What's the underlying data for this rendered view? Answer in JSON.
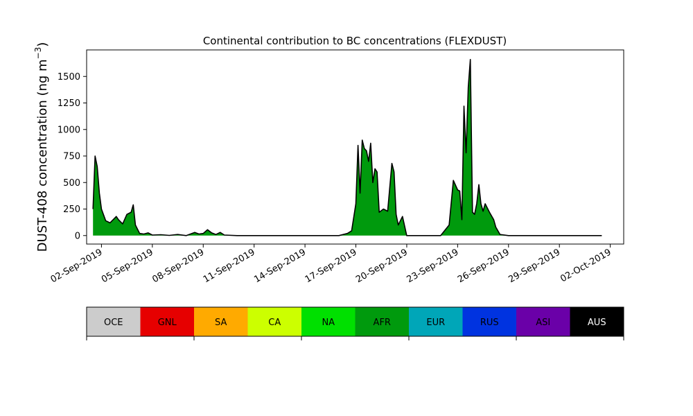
{
  "chart_data": {
    "type": "area",
    "title": "Continental contribution to BC concentrations (FLEXDUST)",
    "xlabel": "",
    "ylabel_main": "DUST-408 concentration (ng m",
    "ylabel_sup": "−3",
    "ylabel_close": ")",
    "xlim": [
      "2019-09-01T03:00",
      "2019-10-02T19:00"
    ],
    "ylim": [
      -80,
      1750
    ],
    "yticks": [
      0,
      250,
      500,
      750,
      1000,
      1250,
      1500
    ],
    "ytick_labels": [
      "0",
      "250",
      "500",
      "750",
      "1000",
      "1250",
      "1500"
    ],
    "xticks": [
      "2019-09-02",
      "2019-09-05",
      "2019-09-08",
      "2019-09-11",
      "2019-09-14",
      "2019-09-17",
      "2019-09-20",
      "2019-09-23",
      "2019-09-26",
      "2019-09-29",
      "2019-10-02"
    ],
    "xtick_labels": [
      "02-Sep-2019",
      "05-Sep-2019",
      "08-Sep-2019",
      "11-Sep-2019",
      "14-Sep-2019",
      "17-Sep-2019",
      "20-Sep-2019",
      "23-Sep-2019",
      "26-Sep-2019",
      "29-Sep-2019",
      "02-Oct-2019"
    ],
    "series": [
      {
        "name": "AFR",
        "color": "#009a0d",
        "points": [
          [
            "2019-09-01T12:00",
            250
          ],
          [
            "2019-09-01T15:00",
            750
          ],
          [
            "2019-09-01T18:00",
            650
          ],
          [
            "2019-09-01T21:00",
            400
          ],
          [
            "2019-09-02T00:00",
            250
          ],
          [
            "2019-09-02T06:00",
            140
          ],
          [
            "2019-09-02T12:00",
            120
          ],
          [
            "2019-09-02T18:00",
            160
          ],
          [
            "2019-09-02T21:00",
            180
          ],
          [
            "2019-09-03T00:00",
            150
          ],
          [
            "2019-09-03T06:00",
            110
          ],
          [
            "2019-09-03T12:00",
            200
          ],
          [
            "2019-09-03T18:00",
            220
          ],
          [
            "2019-09-03T21:00",
            290
          ],
          [
            "2019-09-04T00:00",
            100
          ],
          [
            "2019-09-04T06:00",
            20
          ],
          [
            "2019-09-04T12:00",
            15
          ],
          [
            "2019-09-04T18:00",
            25
          ],
          [
            "2019-09-05T00:00",
            5
          ],
          [
            "2019-09-05T12:00",
            8
          ],
          [
            "2019-09-06T00:00",
            2
          ],
          [
            "2019-09-06T12:00",
            10
          ],
          [
            "2019-09-07T00:00",
            0
          ],
          [
            "2019-09-07T12:00",
            30
          ],
          [
            "2019-09-07T18:00",
            15
          ],
          [
            "2019-09-08T00:00",
            20
          ],
          [
            "2019-09-08T06:00",
            55
          ],
          [
            "2019-09-08T12:00",
            25
          ],
          [
            "2019-09-08T18:00",
            10
          ],
          [
            "2019-09-09T00:00",
            30
          ],
          [
            "2019-09-09T06:00",
            5
          ],
          [
            "2019-09-10T00:00",
            0
          ],
          [
            "2019-09-12T00:00",
            0
          ],
          [
            "2019-09-14T00:00",
            0
          ],
          [
            "2019-09-16T00:00",
            0
          ],
          [
            "2019-09-16T12:00",
            20
          ],
          [
            "2019-09-16T18:00",
            45
          ],
          [
            "2019-09-17T00:00",
            300
          ],
          [
            "2019-09-17T03:00",
            850
          ],
          [
            "2019-09-17T06:00",
            400
          ],
          [
            "2019-09-17T09:00",
            900
          ],
          [
            "2019-09-17T12:00",
            820
          ],
          [
            "2019-09-17T15:00",
            800
          ],
          [
            "2019-09-17T18:00",
            700
          ],
          [
            "2019-09-17T21:00",
            870
          ],
          [
            "2019-09-18T00:00",
            500
          ],
          [
            "2019-09-18T03:00",
            630
          ],
          [
            "2019-09-18T06:00",
            600
          ],
          [
            "2019-09-18T09:00",
            220
          ],
          [
            "2019-09-18T15:00",
            250
          ],
          [
            "2019-09-18T21:00",
            230
          ],
          [
            "2019-09-19T03:00",
            680
          ],
          [
            "2019-09-19T06:00",
            600
          ],
          [
            "2019-09-19T09:00",
            200
          ],
          [
            "2019-09-19T12:00",
            100
          ],
          [
            "2019-09-19T18:00",
            180
          ],
          [
            "2019-09-20T00:00",
            0
          ],
          [
            "2019-09-21T00:00",
            0
          ],
          [
            "2019-09-22T00:00",
            0
          ],
          [
            "2019-09-22T12:00",
            100
          ],
          [
            "2019-09-22T18:00",
            520
          ],
          [
            "2019-09-23T00:00",
            430
          ],
          [
            "2019-09-23T03:00",
            420
          ],
          [
            "2019-09-23T06:00",
            150
          ],
          [
            "2019-09-23T09:00",
            1220
          ],
          [
            "2019-09-23T12:00",
            780
          ],
          [
            "2019-09-23T15:00",
            1400
          ],
          [
            "2019-09-23T18:00",
            1660
          ],
          [
            "2019-09-23T21:00",
            220
          ],
          [
            "2019-09-24T00:00",
            200
          ],
          [
            "2019-09-24T03:00",
            300
          ],
          [
            "2019-09-24T06:00",
            480
          ],
          [
            "2019-09-24T09:00",
            300
          ],
          [
            "2019-09-24T12:00",
            230
          ],
          [
            "2019-09-24T15:00",
            300
          ],
          [
            "2019-09-24T21:00",
            220
          ],
          [
            "2019-09-25T03:00",
            150
          ],
          [
            "2019-09-25T06:00",
            80
          ],
          [
            "2019-09-25T12:00",
            10
          ],
          [
            "2019-09-26T00:00",
            0
          ],
          [
            "2019-09-27T00:00",
            0
          ],
          [
            "2019-09-28T00:00",
            0
          ],
          [
            "2019-09-29T00:00",
            0
          ],
          [
            "2019-09-30T00:00",
            0
          ],
          [
            "2019-10-01T00:00",
            0
          ],
          [
            "2019-10-01T12:00",
            0
          ]
        ]
      }
    ],
    "colorbar": [
      {
        "label": "OCE",
        "color": "#cccccc",
        "text_color": "#000000"
      },
      {
        "label": "GNL",
        "color": "#e60000",
        "text_color": "#000000"
      },
      {
        "label": "SA",
        "color": "#ffaa00",
        "text_color": "#000000"
      },
      {
        "label": "CA",
        "color": "#ccff00",
        "text_color": "#000000"
      },
      {
        "label": "NA",
        "color": "#00e000",
        "text_color": "#000000"
      },
      {
        "label": "AFR",
        "color": "#009a0d",
        "text_color": "#000000"
      },
      {
        "label": "EUR",
        "color": "#00a6b8",
        "text_color": "#000000"
      },
      {
        "label": "RUS",
        "color": "#0033e0",
        "text_color": "#000000"
      },
      {
        "label": "ASI",
        "color": "#6a00a8",
        "text_color": "#000000"
      },
      {
        "label": "AUS",
        "color": "#000000",
        "text_color": "#ffffff"
      }
    ]
  }
}
